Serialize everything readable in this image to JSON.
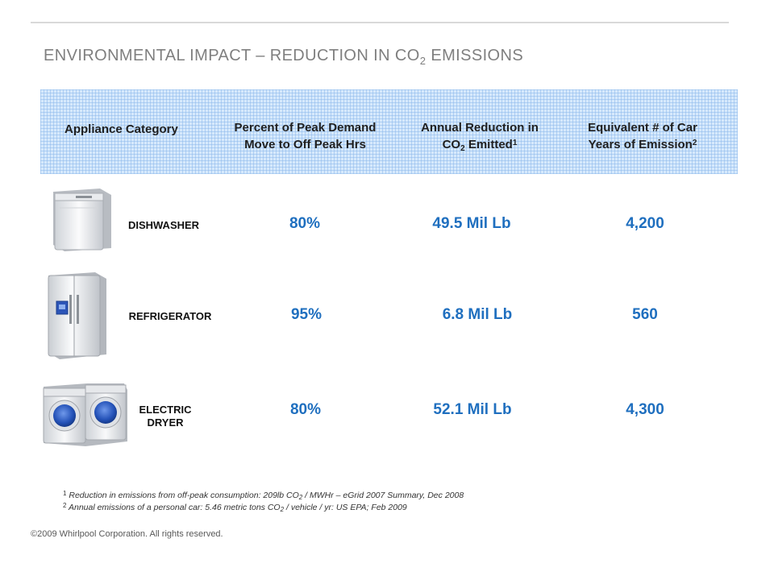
{
  "slide": {
    "title_main": "ENVIRONMENTAL IMPACT – REDUCTION IN CO",
    "title_sub": "2",
    "title_end": " EMISSIONS"
  },
  "header": {
    "col1": "Appliance Category",
    "col2_line1": "Percent of Peak Demand",
    "col2_line2": "Move to Off Peak Hrs",
    "col3_line1": "Annual Reduction in",
    "col3_line2_a": "CO",
    "col3_line2_sub": "2",
    "col3_line2_b": " Emitted",
    "col3_sup": "1",
    "col4_line1": "Equivalent # of Car",
    "col4_line2": "Years of Emission",
    "col4_sup": "2"
  },
  "rows": [
    {
      "name": "DISHWASHER",
      "icon": "dishwasher-icon",
      "percent": "80%",
      "reduction": "49.5 Mil Lb",
      "car_years": "4,200"
    },
    {
      "name": "REFRIGERATOR",
      "icon": "refrigerator-icon",
      "percent": "95%",
      "reduction": "6.8 Mil Lb",
      "car_years": "560"
    },
    {
      "name_line1": "ELECTRIC",
      "name_line2": "DRYER",
      "icon": "dryer-icon",
      "percent": "80%",
      "reduction": "52.1 Mil Lb",
      "car_years": "4,300"
    }
  ],
  "footnotes": {
    "fn1_num": "1",
    "fn1_a": " Reduction in emissions from off-peak consumption: 209lb CO",
    "fn1_sub": "2",
    "fn1_b": " / MWHr – eGrid 2007 Summary, Dec 2008",
    "fn2_num": "2",
    "fn2_a": " Annual emissions of a personal car: 5.46 metric tons CO",
    "fn2_sub": "2",
    "fn2_b": " / vehicle / yr: US EPA; Feb 2009"
  },
  "copyright": "©2009 Whirlpool Corporation. All rights reserved.",
  "colors": {
    "value_blue": "#1f6fbf",
    "header_bg": "#d6e9fc",
    "title_gray": "#7f7f7f"
  }
}
